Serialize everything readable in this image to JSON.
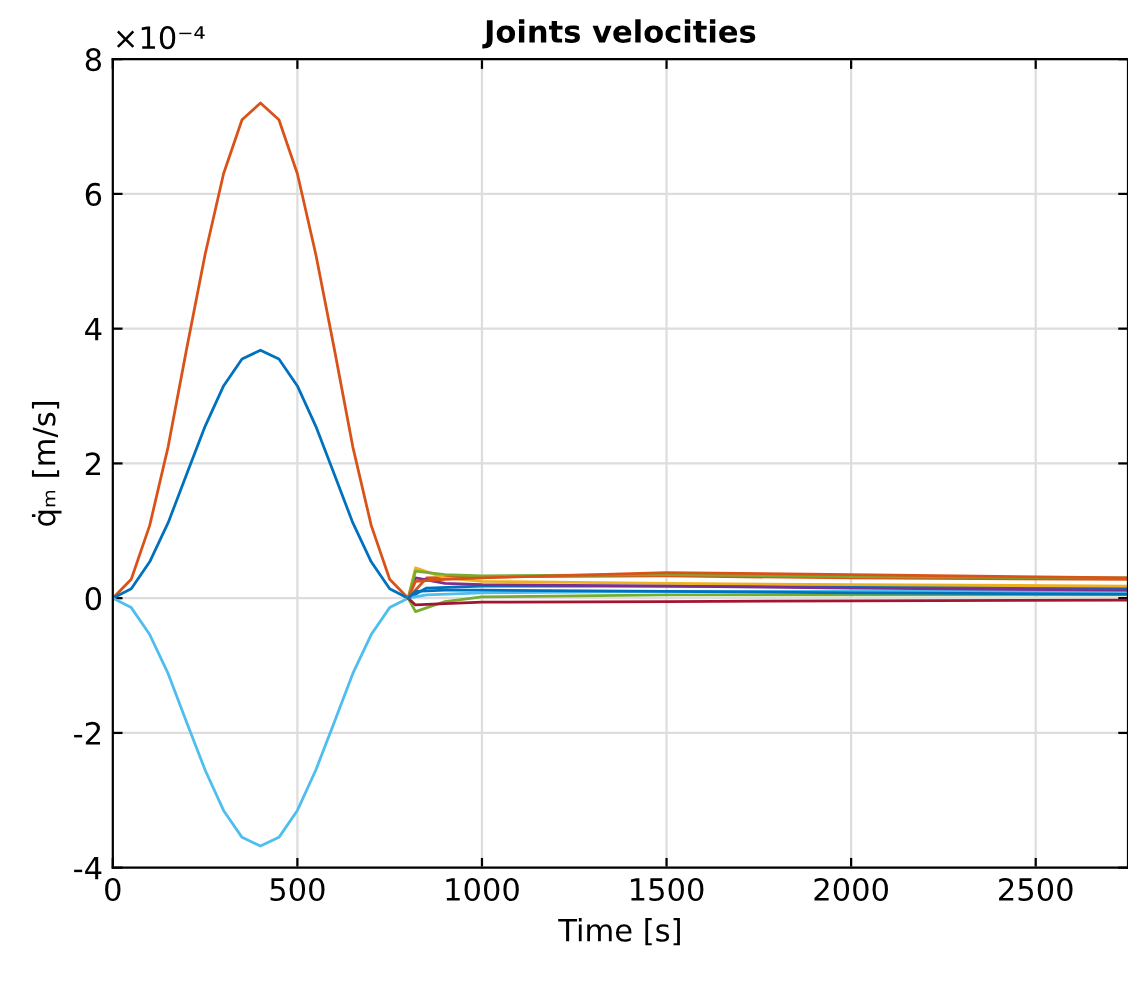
{
  "chart_data": {
    "type": "line",
    "title": "Joints velocities",
    "xlabel": "Time [s]",
    "ylabel": "q̇ₘ [m/s]",
    "annotations": [
      "×10⁻⁴"
    ],
    "xlim": [
      0,
      2750
    ],
    "ylim": [
      -4,
      8
    ],
    "xticks": [
      0,
      500,
      1000,
      1500,
      2000,
      2500
    ],
    "yticks": [
      -4,
      -2,
      0,
      2,
      4,
      6,
      8
    ],
    "grid": true,
    "line_style": "solid",
    "marker": "none",
    "series": [
      {
        "color": "#d95319",
        "x": [
          0,
          50,
          100,
          150,
          200,
          250,
          300,
          350,
          400,
          450,
          500,
          550,
          600,
          650,
          700,
          750,
          800,
          850,
          1000,
          1500,
          2000,
          2750
        ],
        "values": [
          0,
          0.28,
          1.08,
          2.25,
          3.7,
          5.1,
          6.3,
          7.1,
          7.35,
          7.1,
          6.3,
          5.1,
          3.7,
          2.25,
          1.08,
          0.28,
          0,
          0.3,
          0.32,
          0.33,
          0.3,
          0.28
        ]
      },
      {
        "color": "#0072bd",
        "x": [
          0,
          50,
          100,
          150,
          200,
          250,
          300,
          350,
          400,
          450,
          500,
          550,
          600,
          650,
          700,
          750,
          800,
          850,
          1000,
          1500,
          2000,
          2750
        ],
        "values": [
          0,
          0.14,
          0.54,
          1.12,
          1.84,
          2.55,
          3.15,
          3.55,
          3.68,
          3.55,
          3.15,
          2.55,
          1.84,
          1.12,
          0.54,
          0.14,
          0,
          0.15,
          0.18,
          0.18,
          0.17,
          0.15
        ]
      },
      {
        "color": "#4dbeee",
        "x": [
          0,
          50,
          100,
          150,
          200,
          250,
          300,
          350,
          400,
          450,
          500,
          550,
          600,
          650,
          700,
          750,
          800,
          850,
          1000,
          1500,
          2000,
          2750
        ],
        "values": [
          0,
          -0.14,
          -0.54,
          -1.12,
          -1.84,
          -2.55,
          -3.15,
          -3.55,
          -3.68,
          -3.55,
          -3.15,
          -2.55,
          -1.84,
          -1.12,
          -0.54,
          -0.14,
          0,
          0.05,
          0.08,
          0.1,
          0.1,
          0.1
        ]
      },
      {
        "color": "#edb120",
        "x": [
          800,
          820,
          900,
          1000,
          1500,
          2000,
          2750
        ],
        "values": [
          0,
          0.45,
          0.3,
          0.25,
          0.22,
          0.2,
          0.18
        ]
      },
      {
        "color": "#7e2f8e",
        "x": [
          800,
          820,
          900,
          1000,
          1500,
          2000,
          2750
        ],
        "values": [
          0,
          0.3,
          0.22,
          0.2,
          0.18,
          0.15,
          0.12
        ]
      },
      {
        "color": "#77ac30",
        "x": [
          800,
          820,
          900,
          1000,
          1500,
          2000,
          2750
        ],
        "values": [
          0,
          -0.2,
          -0.05,
          0.02,
          0.05,
          0.05,
          0.05
        ]
      },
      {
        "color": "#a2142f",
        "x": [
          800,
          820,
          900,
          1000,
          1500,
          2000,
          2750
        ],
        "values": [
          0,
          -0.1,
          -0.08,
          -0.06,
          -0.05,
          -0.04,
          -0.03
        ]
      },
      {
        "color": "#77ac30",
        "x": [
          800,
          820,
          900,
          1000,
          1500,
          2000,
          2750
        ],
        "values": [
          0,
          0.4,
          0.35,
          0.33,
          0.35,
          0.32,
          0.3
        ]
      },
      {
        "color": "#d95319",
        "x": [
          800,
          820,
          900,
          1000,
          1500,
          2000,
          2750
        ],
        "values": [
          0,
          0.25,
          0.28,
          0.3,
          0.38,
          0.35,
          0.3
        ]
      },
      {
        "color": "#0072bd",
        "x": [
          800,
          820,
          900,
          1000,
          1500,
          2000,
          2750
        ],
        "values": [
          0,
          0.1,
          0.12,
          0.12,
          0.1,
          0.08,
          0.06
        ]
      }
    ]
  }
}
